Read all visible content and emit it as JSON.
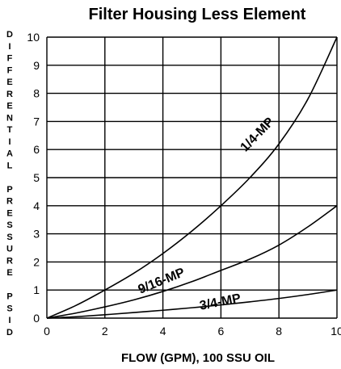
{
  "chart_data": {
    "type": "line",
    "title": "Filter Housing Less Element",
    "xlabel": "FLOW (GPM), 100 SSU OIL",
    "ylabel": "DIFFERENTIAL PRESSURE PSID",
    "ylabel_lines": [
      "D",
      "I",
      "F",
      "F",
      "E",
      "R",
      "E",
      "N",
      "T",
      "I",
      "A",
      "L",
      "",
      "P",
      "R",
      "E",
      "S",
      "S",
      "U",
      "R",
      "E",
      "",
      "P",
      "S",
      "I",
      "D"
    ],
    "xlim": [
      0,
      10
    ],
    "ylim": [
      0,
      10
    ],
    "xticks": [
      0,
      2,
      4,
      6,
      8,
      10
    ],
    "xtick_labels": [
      "0",
      "2",
      "4",
      "6",
      "8",
      "10"
    ],
    "yticks": [
      0,
      1,
      2,
      3,
      4,
      5,
      6,
      7,
      8,
      9,
      10
    ],
    "ytick_labels": [
      "0",
      "1",
      "2",
      "3",
      "4",
      "5",
      "6",
      "7",
      "8",
      "9",
      "10"
    ],
    "grid": true,
    "series": [
      {
        "name": "1/4-MP",
        "x": [
          0,
          1,
          2,
          3,
          4,
          5,
          6,
          7,
          8,
          9,
          10
        ],
        "y": [
          0,
          0.45,
          1.0,
          1.6,
          2.3,
          3.1,
          4.0,
          5.0,
          6.2,
          7.8,
          10.0
        ]
      },
      {
        "name": "9/16-MP",
        "x": [
          0,
          1,
          2,
          3,
          4,
          5,
          6,
          7,
          8,
          9,
          10
        ],
        "y": [
          0,
          0.18,
          0.4,
          0.65,
          0.95,
          1.3,
          1.7,
          2.1,
          2.6,
          3.25,
          4.0
        ]
      },
      {
        "name": "3/4-MP",
        "x": [
          0,
          1,
          2,
          3,
          4,
          5,
          6,
          7,
          8,
          9,
          10
        ],
        "y": [
          0,
          0.05,
          0.12,
          0.2,
          0.28,
          0.37,
          0.47,
          0.58,
          0.7,
          0.84,
          1.0
        ]
      }
    ],
    "line_color": "#000000",
    "grid_color": "#000000"
  }
}
